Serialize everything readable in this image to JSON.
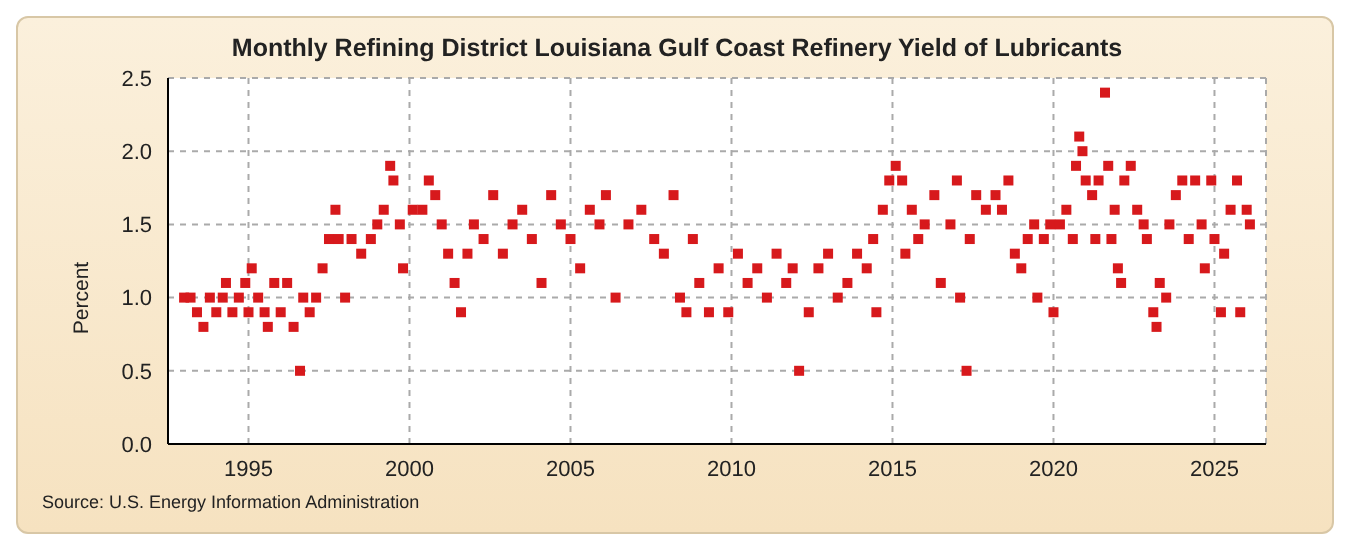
{
  "chart_data": {
    "type": "scatter",
    "title": "Monthly Refining District Louisiana Gulf Coast Refinery Yield of Lubricants",
    "ylabel": "Percent",
    "annotations": [
      "Source: U.S. Energy Information Administration"
    ],
    "xlim": [
      1992.5,
      2026.6
    ],
    "xticks": [
      1995,
      2000,
      2005,
      2010,
      2015,
      2020,
      2025
    ],
    "ylim": [
      0,
      2.5
    ],
    "yticks": [
      {
        "value": 0,
        "label": "0.0"
      },
      0.5,
      {
        "value": 1,
        "label": "1.0"
      },
      1.5,
      {
        "value": 2,
        "label": "2.0"
      },
      2.5
    ],
    "grid": true,
    "marker": "square",
    "legend": false,
    "series": [
      {
        "color": "#d7191c",
        "x": [
          1993.0,
          1993.2,
          1993.4,
          1993.6,
          1993.8,
          1994.0,
          1994.2,
          1994.3,
          1994.5,
          1994.7,
          1994.9,
          1995.0,
          1995.1,
          1995.3,
          1995.5,
          1995.6,
          1995.8,
          1996.0,
          1996.2,
          1996.4,
          1996.6,
          1996.7,
          1996.9,
          1997.1,
          1997.3,
          1997.5,
          1997.7,
          1997.8,
          1998.0,
          1998.2,
          1998.5,
          1998.8,
          1999.0,
          1999.2,
          1999.4,
          1999.5,
          1999.7,
          1999.8,
          2000.1,
          2000.4,
          2000.6,
          2000.8,
          2001.0,
          2001.2,
          2001.4,
          2001.6,
          2001.8,
          2002.0,
          2002.3,
          2002.6,
          2002.9,
          2003.2,
          2003.5,
          2003.8,
          2004.1,
          2004.4,
          2004.7,
          2005.0,
          2005.3,
          2005.6,
          2005.9,
          2006.1,
          2006.4,
          2006.8,
          2007.2,
          2007.6,
          2007.9,
          2008.2,
          2008.4,
          2008.6,
          2008.8,
          2009.0,
          2009.3,
          2009.6,
          2009.9,
          2010.2,
          2010.5,
          2010.8,
          2011.1,
          2011.4,
          2011.7,
          2011.9,
          2012.1,
          2012.4,
          2012.7,
          2013.0,
          2013.3,
          2013.6,
          2013.9,
          2014.2,
          2014.4,
          2014.5,
          2014.7,
          2014.9,
          2015.1,
          2015.3,
          2015.4,
          2015.6,
          2015.8,
          2016.0,
          2016.3,
          2016.5,
          2016.8,
          2017.0,
          2017.1,
          2017.3,
          2017.4,
          2017.6,
          2017.9,
          2018.2,
          2018.4,
          2018.6,
          2018.8,
          2019.0,
          2019.2,
          2019.4,
          2019.5,
          2019.7,
          2019.9,
          2020.0,
          2020.2,
          2020.4,
          2020.6,
          2020.7,
          2020.8,
          2020.9,
          2021.0,
          2021.2,
          2021.3,
          2021.4,
          2021.6,
          2021.7,
          2021.8,
          2021.9,
          2022.0,
          2022.1,
          2022.2,
          2022.4,
          2022.6,
          2022.8,
          2022.9,
          2023.1,
          2023.2,
          2023.3,
          2023.5,
          2023.6,
          2023.8,
          2024.0,
          2024.2,
          2024.4,
          2024.6,
          2024.7,
          2024.9,
          2025.0,
          2025.2,
          2025.3,
          2025.5,
          2025.7,
          2025.8,
          2026.0,
          2026.1
        ],
        "values": [
          1.0,
          1.0,
          0.9,
          0.8,
          1.0,
          0.9,
          1.0,
          1.1,
          0.9,
          1.0,
          1.1,
          0.9,
          1.2,
          1.0,
          0.9,
          0.8,
          1.1,
          0.9,
          1.1,
          0.8,
          0.5,
          1.0,
          0.9,
          1.0,
          1.2,
          1.4,
          1.6,
          1.4,
          1.0,
          1.4,
          1.3,
          1.4,
          1.5,
          1.6,
          1.9,
          1.8,
          1.5,
          1.2,
          1.6,
          1.6,
          1.8,
          1.7,
          1.5,
          1.3,
          1.1,
          0.9,
          1.3,
          1.5,
          1.4,
          1.7,
          1.3,
          1.5,
          1.6,
          1.4,
          1.1,
          1.7,
          1.5,
          1.4,
          1.2,
          1.6,
          1.5,
          1.7,
          1.0,
          1.5,
          1.6,
          1.4,
          1.3,
          1.7,
          1.0,
          0.9,
          1.4,
          1.1,
          0.9,
          1.2,
          0.9,
          1.3,
          1.1,
          1.2,
          1.0,
          1.3,
          1.1,
          1.2,
          0.5,
          0.9,
          1.2,
          1.3,
          1.0,
          1.1,
          1.3,
          1.2,
          1.4,
          0.9,
          1.6,
          1.8,
          1.9,
          1.8,
          1.3,
          1.6,
          1.4,
          1.5,
          1.7,
          1.1,
          1.5,
          1.8,
          1.0,
          0.5,
          1.4,
          1.7,
          1.6,
          1.7,
          1.6,
          1.8,
          1.3,
          1.2,
          1.4,
          1.5,
          1.0,
          1.4,
          1.5,
          0.9,
          1.5,
          1.6,
          1.4,
          1.9,
          2.1,
          2.0,
          1.8,
          1.7,
          1.4,
          1.8,
          2.4,
          1.9,
          1.4,
          1.6,
          1.2,
          1.1,
          1.8,
          1.9,
          1.6,
          1.5,
          1.4,
          0.9,
          0.8,
          1.1,
          1.0,
          1.5,
          1.7,
          1.8,
          1.4,
          1.8,
          1.5,
          1.2,
          1.8,
          1.4,
          0.9,
          1.3,
          1.6,
          1.8,
          0.9,
          1.6,
          1.5
        ]
      }
    ]
  }
}
